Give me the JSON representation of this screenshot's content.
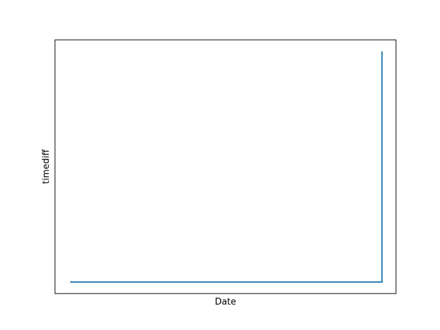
{
  "chart_data": {
    "type": "line",
    "title": "",
    "xlabel": "Date",
    "ylabel": "timediff",
    "grid": false,
    "legend": "none",
    "x_ticks_shown": false,
    "y_ticks_shown": false,
    "xlim": [
      0,
      1.045
    ],
    "ylim": [
      -0.05,
      1.05
    ],
    "series": [
      {
        "color": "#1f77b4",
        "x": [
          0,
          1.0,
          1.0
        ],
        "y": [
          0,
          0,
          1.0
        ]
      }
    ]
  }
}
